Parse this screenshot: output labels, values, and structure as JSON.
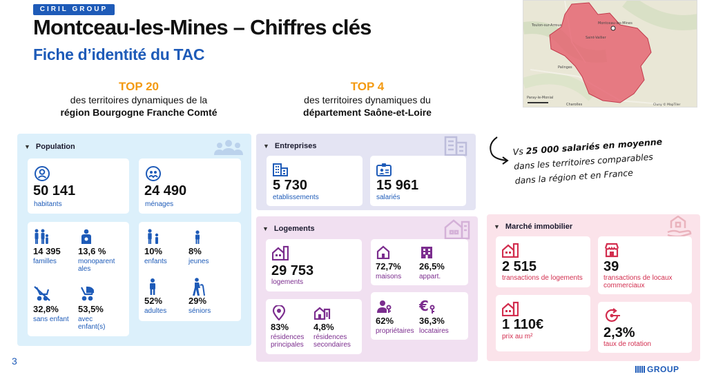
{
  "header": {
    "brand": "CIRIL GROUP",
    "title": "Montceau-les-Mines – Chiffres clés",
    "subtitle": "Fiche d’identité du TAC"
  },
  "tops": [
    {
      "label": "TOP 20",
      "line1": "des territoires dynamiques de la",
      "line2": "région Bourgogne Franche Comté"
    },
    {
      "label": "TOP 4",
      "line1": "des territoires dynamiques du",
      "line2": "département Saône-et-Loire"
    }
  ],
  "map": {
    "places": [
      "Toulon-sur-Arroux",
      "Montceau-les-Mines",
      "Saint-Vallier",
      "Palinges",
      "Paray-le-Monial",
      "Charolles"
    ],
    "copyright": "Cluny  © MapTiler"
  },
  "population": {
    "title": "Population",
    "main": [
      {
        "value": "50 141",
        "label": "habitants"
      },
      {
        "value": "24 490",
        "label": "ménages"
      }
    ],
    "stats_a": [
      {
        "value": "14 395",
        "label": "familles"
      },
      {
        "value": "13,6 %",
        "label": "monoparent ales"
      },
      {
        "value": "32,8%",
        "label": "sans enfant"
      },
      {
        "value": "53,5%",
        "label": "avec enfant(s)"
      }
    ],
    "stats_b": [
      {
        "value": "10%",
        "label": "enfants"
      },
      {
        "value": "8%",
        "label": "jeunes"
      },
      {
        "value": "52%",
        "label": "adultes"
      },
      {
        "value": "29%",
        "label": "séniors"
      }
    ]
  },
  "entreprises": {
    "title": "Entreprises",
    "items": [
      {
        "value": "5 730",
        "label": "etablissements"
      },
      {
        "value": "15 961",
        "label": "salariés"
      }
    ]
  },
  "logements": {
    "title": "Logements",
    "main": {
      "value": "29 753",
      "label": "logements"
    },
    "type": [
      {
        "value": "72,7%",
        "label": "maisons"
      },
      {
        "value": "26,5%",
        "label": "appart."
      }
    ],
    "residences": [
      {
        "value": "83%",
        "label": "résidences principales"
      },
      {
        "value": "4,8%",
        "label": "résidences secondaires"
      }
    ],
    "occupation": [
      {
        "value": "62%",
        "label": "propriétaires"
      },
      {
        "value": "36,3%",
        "label": "locataires"
      }
    ]
  },
  "marche": {
    "title": "Marché immobilier",
    "items": [
      {
        "value": "2 515",
        "label": "transactions de logements"
      },
      {
        "value": "39",
        "label": "transactions de locaux commerciaux"
      },
      {
        "value": "1 110€",
        "label": "prix au m²"
      },
      {
        "value": "2,3%",
        "label": "taux de rotation"
      }
    ]
  },
  "annotation": {
    "line1_a": "Vs ",
    "line1_b": "25 000  salariés en moyenne",
    "line2": "dans les territoires comparables",
    "line3": "dans la région et en France"
  },
  "footer": {
    "page": "3",
    "logo": "GROUP"
  },
  "colors": {
    "blue": "#1e5bb8",
    "orange": "#f39a12",
    "purple": "#7b2d8e",
    "red": "#d22d4e"
  }
}
